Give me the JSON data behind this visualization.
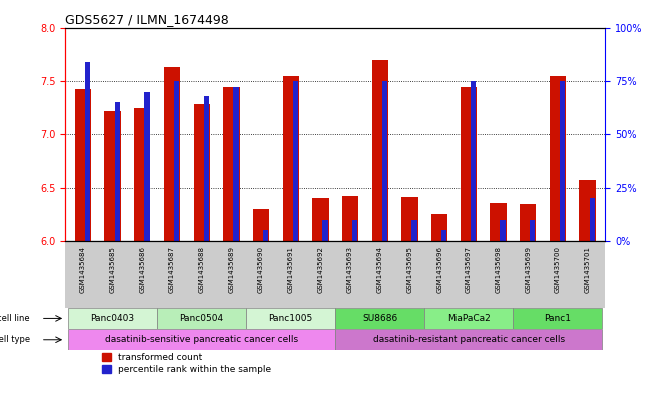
{
  "title": "GDS5627 / ILMN_1674498",
  "samples": [
    "GSM1435684",
    "GSM1435685",
    "GSM1435686",
    "GSM1435687",
    "GSM1435688",
    "GSM1435689",
    "GSM1435690",
    "GSM1435691",
    "GSM1435692",
    "GSM1435693",
    "GSM1435694",
    "GSM1435695",
    "GSM1435696",
    "GSM1435697",
    "GSM1435698",
    "GSM1435699",
    "GSM1435700",
    "GSM1435701"
  ],
  "red_values": [
    7.42,
    7.22,
    7.25,
    7.63,
    7.28,
    7.44,
    6.3,
    7.55,
    6.4,
    6.42,
    7.7,
    6.41,
    6.25,
    7.44,
    6.36,
    6.35,
    7.55,
    6.57
  ],
  "blue_values": [
    84,
    65,
    70,
    75,
    68,
    72,
    5,
    75,
    10,
    10,
    75,
    10,
    5,
    75,
    10,
    10,
    75,
    20
  ],
  "ylim_left": [
    6.0,
    8.0
  ],
  "ylim_right": [
    0,
    100
  ],
  "yticks_left": [
    6.0,
    6.5,
    7.0,
    7.5,
    8.0
  ],
  "yticks_right": [
    0,
    25,
    50,
    75,
    100
  ],
  "ytick_labels_right": [
    "0%",
    "25%",
    "50%",
    "75%",
    "100%"
  ],
  "cell_lines": [
    {
      "label": "Panc0403",
      "start": 0,
      "end": 2,
      "color": "#d4f5d4"
    },
    {
      "label": "Panc0504",
      "start": 3,
      "end": 5,
      "color": "#b8eeb8"
    },
    {
      "label": "Panc1005",
      "start": 6,
      "end": 8,
      "color": "#d4f5d4"
    },
    {
      "label": "SU8686",
      "start": 9,
      "end": 11,
      "color": "#66dd66"
    },
    {
      "label": "MiaPaCa2",
      "start": 12,
      "end": 14,
      "color": "#88ee88"
    },
    {
      "label": "Panc1",
      "start": 15,
      "end": 17,
      "color": "#66dd66"
    }
  ],
  "cell_types": [
    {
      "label": "dasatinib-sensitive pancreatic cancer cells",
      "start": 0,
      "end": 8,
      "color": "#ee88ee"
    },
    {
      "label": "dasatinib-resistant pancreatic cancer cells",
      "start": 9,
      "end": 17,
      "color": "#cc77cc"
    }
  ],
  "red_bar_width": 0.55,
  "blue_bar_width": 0.18,
  "red_color": "#cc1100",
  "blue_color": "#2222cc",
  "base": 6.0,
  "sample_label_bg": "#cccccc",
  "grid_linestyle": "dotted",
  "grid_color": "#000000"
}
